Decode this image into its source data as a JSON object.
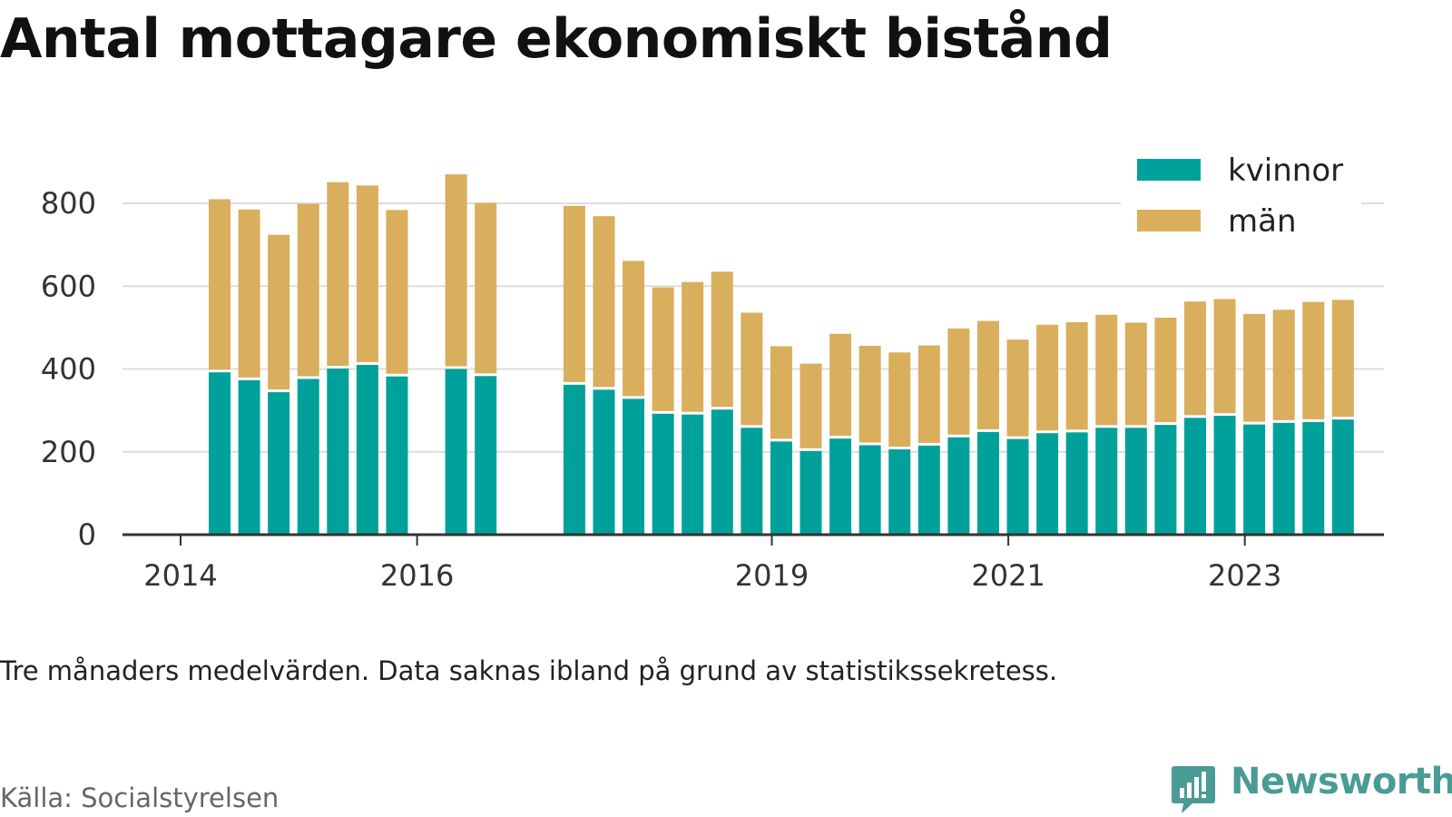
{
  "title": "Antal mottagare ekonomiskt bistånd",
  "note": "Tre månaders medelvärden. Data saknas ibland på grund av statistikssekretess.",
  "source": "Källa: Socialstyrelsen",
  "brand": {
    "name": "Newsworthy",
    "icon": "newsworthy-logo-icon",
    "color": "#4a9b96"
  },
  "colors": {
    "kvinnor": "#00a19a",
    "man": "#d9ae5c",
    "grid": "#dddddd",
    "axis": "#333333"
  },
  "chart_data": {
    "type": "bar",
    "stacked": true,
    "grid": true,
    "legend_position": "top-right",
    "ylim": [
      0,
      900
    ],
    "yticks": [
      0,
      200,
      400,
      600,
      800
    ],
    "xticks": [
      {
        "label": "2014",
        "x": 2014.0
      },
      {
        "label": "2016",
        "x": 2016.0
      },
      {
        "label": "2019",
        "x": 2019.0
      },
      {
        "label": "2021",
        "x": 2021.0
      },
      {
        "label": "2023",
        "x": 2023.0
      }
    ],
    "xlim": [
      2013.5,
      2024.2
    ],
    "x": [
      2014.33,
      2014.58,
      2014.83,
      2015.08,
      2015.33,
      2015.58,
      2015.83,
      2016.33,
      2016.58,
      2017.33,
      2017.58,
      2017.83,
      2018.08,
      2018.33,
      2018.58,
      2018.83,
      2019.08,
      2019.33,
      2019.58,
      2019.83,
      2020.08,
      2020.33,
      2020.58,
      2020.83,
      2021.08,
      2021.33,
      2021.58,
      2021.83,
      2022.08,
      2022.33,
      2022.58,
      2022.83,
      2023.08,
      2023.33,
      2023.58,
      2023.83
    ],
    "series": [
      {
        "name": "kvinnor",
        "values": [
          392,
          373,
          344,
          376,
          401,
          410,
          382,
          400,
          383,
          362,
          350,
          328,
          292,
          290,
          302,
          258,
          225,
          202,
          232,
          216,
          206,
          215,
          235,
          248,
          231,
          245,
          247,
          258,
          258,
          265,
          282,
          287,
          266,
          270,
          272,
          278
        ]
      },
      {
        "name": "män",
        "values": [
          418,
          412,
          380,
          423,
          450,
          433,
          402,
          470,
          418,
          432,
          419,
          333,
          305,
          320,
          333,
          278,
          230,
          211,
          253,
          240,
          234,
          242,
          263,
          268,
          240,
          262,
          266,
          273,
          254,
          259,
          281,
          282,
          267,
          273,
          290,
          289
        ]
      }
    ]
  }
}
